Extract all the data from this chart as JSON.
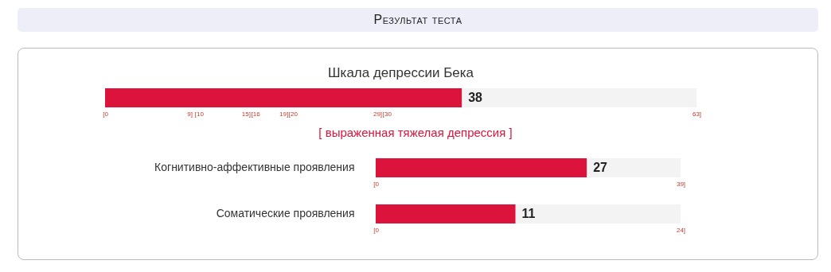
{
  "chart_data": [
    {
      "type": "other",
      "title": "Результат теста"
    },
    {
      "type": "bar",
      "orientation": "horizontal",
      "title": "Шкала депрессии Бека",
      "categories": [
        null
      ],
      "values": [
        38
      ],
      "color": "#dc143c",
      "xlim": [
        0,
        63
      ],
      "xticks": [
        {
          "value": 0,
          "label": "[0"
        },
        {
          "value": 9,
          "label": "9]"
        },
        {
          "value": 10,
          "label": "[10"
        },
        {
          "value": 15,
          "label": "15]"
        },
        {
          "value": 16,
          "label": "[16"
        },
        {
          "value": 19,
          "label": "19]"
        },
        {
          "value": 20,
          "label": "[20"
        },
        {
          "value": 29,
          "label": "29]"
        },
        {
          "value": 30,
          "label": "[30"
        },
        {
          "value": 63,
          "label": "63]"
        }
      ],
      "data_labels": true,
      "annotations": [
        "[ выраженная тяжелая депрессия ]"
      ]
    },
    {
      "type": "bar",
      "orientation": "horizontal",
      "categories": [
        "Когнитивно-аффективные проявления"
      ],
      "values": [
        27
      ],
      "color": "#dc143c",
      "xlim": [
        0,
        39
      ],
      "xticks": [
        {
          "value": 0,
          "label": "[0"
        },
        {
          "value": 39,
          "label": "39]"
        }
      ],
      "data_labels": true
    },
    {
      "type": "bar",
      "orientation": "horizontal",
      "categories": [
        "Соматические проявления"
      ],
      "values": [
        11
      ],
      "color": "#dc143c",
      "xlim": [
        0,
        24
      ],
      "xticks": [
        {
          "value": 0,
          "label": "[0"
        },
        {
          "value": 24,
          "label": "24]"
        }
      ],
      "data_labels": true
    }
  ]
}
